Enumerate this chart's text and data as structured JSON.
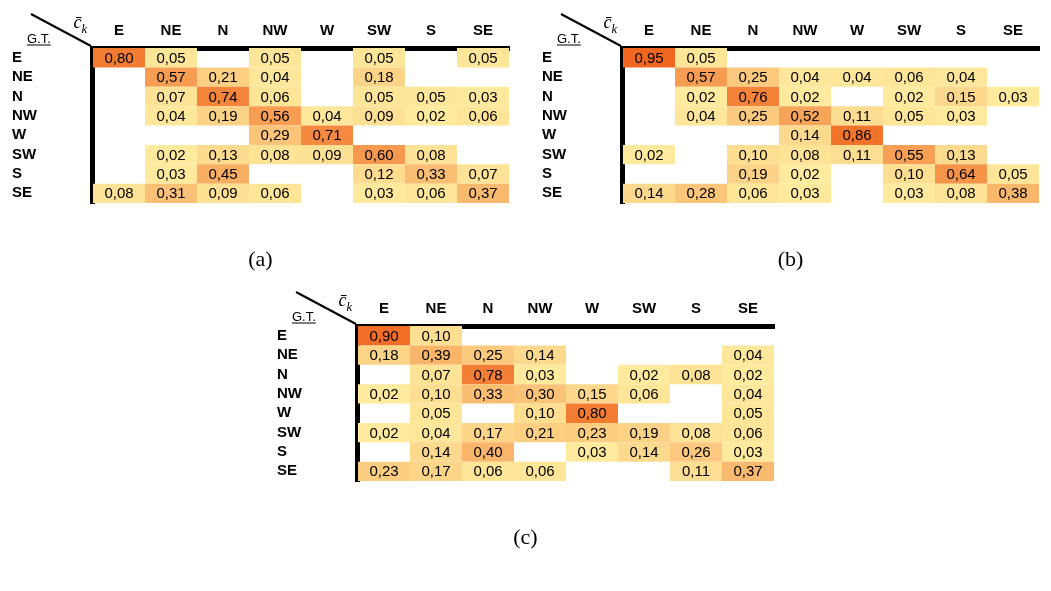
{
  "chart_data": [
    {
      "type": "heatmap",
      "title": "(a)",
      "xlabel": "c̄$_{k}$",
      "ylabel": "G.T.",
      "categories": [
        "E",
        "NE",
        "N",
        "NW",
        "W",
        "SW",
        "S",
        "SE"
      ],
      "y_categories": [
        "E",
        "NE",
        "N",
        "NW",
        "W",
        "SW",
        "S",
        "SE"
      ],
      "cells": [
        [
          0.8,
          0.05,
          null,
          0.05,
          null,
          0.05,
          null,
          0.05
        ],
        [
          null,
          0.57,
          0.21,
          0.04,
          null,
          0.18,
          null,
          null
        ],
        [
          null,
          0.07,
          0.74,
          0.06,
          null,
          0.05,
          0.05,
          0.03
        ],
        [
          null,
          0.04,
          0.19,
          0.56,
          0.04,
          0.09,
          0.02,
          0.06
        ],
        [
          null,
          null,
          null,
          0.29,
          0.71,
          null,
          null,
          null
        ],
        [
          null,
          0.02,
          0.13,
          0.08,
          0.09,
          0.6,
          0.08,
          null
        ],
        [
          null,
          0.03,
          0.45,
          null,
          null,
          0.12,
          0.33,
          0.07
        ],
        [
          0.08,
          0.31,
          0.09,
          0.06,
          null,
          0.03,
          0.06,
          0.37
        ]
      ],
      "cell_labels": [
        [
          "0,80",
          "0,05",
          null,
          "0,05",
          null,
          "0,05",
          null,
          "0,05"
        ],
        [
          null,
          "0,57",
          "0,21",
          "0,04",
          null,
          "0,18",
          null,
          null
        ],
        [
          null,
          "0,07",
          "0,74",
          "0,06",
          null,
          "0,05",
          "0,05",
          "0,03"
        ],
        [
          null,
          "0,04",
          "0,19",
          "0,56",
          "0,04",
          "0,09",
          "0,02",
          "0,06"
        ],
        [
          null,
          null,
          null,
          "0,29",
          "0,71",
          null,
          null,
          null
        ],
        [
          null,
          "0,02",
          "0,13",
          "0,08",
          "0,09",
          "0,60",
          "0,08",
          null
        ],
        [
          null,
          "0,03",
          "0,45",
          null,
          null,
          "0,12",
          "0,33",
          "0,07"
        ],
        [
          "0,08",
          "0,31",
          "0,09",
          "0,06",
          null,
          "0,03",
          "0,06",
          "0,37"
        ]
      ]
    },
    {
      "type": "heatmap",
      "title": "(b)",
      "xlabel": "c̄$_{k}$",
      "ylabel": "G.T.",
      "categories": [
        "E",
        "NE",
        "N",
        "NW",
        "W",
        "SW",
        "S",
        "SE"
      ],
      "y_categories": [
        "E",
        "NE",
        "N",
        "NW",
        "W",
        "SW",
        "S",
        "SE"
      ],
      "cells": [
        [
          0.95,
          0.05,
          null,
          null,
          null,
          null,
          null,
          null
        ],
        [
          null,
          0.57,
          0.25,
          0.04,
          0.04,
          0.06,
          0.04,
          null
        ],
        [
          null,
          0.02,
          0.76,
          0.02,
          null,
          0.02,
          0.15,
          0.03
        ],
        [
          null,
          0.04,
          0.25,
          0.52,
          0.11,
          0.05,
          0.03,
          null
        ],
        [
          null,
          null,
          null,
          0.14,
          0.86,
          null,
          null,
          null
        ],
        [
          0.02,
          null,
          0.1,
          0.08,
          0.11,
          0.55,
          0.13,
          null
        ],
        [
          null,
          null,
          0.19,
          0.02,
          null,
          0.1,
          0.64,
          0.05
        ],
        [
          0.14,
          0.28,
          0.06,
          0.03,
          null,
          0.03,
          0.08,
          0.38
        ]
      ],
      "cell_labels": [
        [
          "0,95",
          "0,05",
          null,
          null,
          null,
          null,
          null,
          null
        ],
        [
          null,
          "0,57",
          "0,25",
          "0,04",
          "0,04",
          "0,06",
          "0,04",
          null
        ],
        [
          null,
          "0,02",
          "0,76",
          "0,02",
          null,
          "0,02",
          "0,15",
          "0,03"
        ],
        [
          null,
          "0,04",
          "0,25",
          "0,52",
          "0,11",
          "0,05",
          "0,03",
          null
        ],
        [
          null,
          null,
          null,
          "0,14",
          "0,86",
          null,
          null,
          null
        ],
        [
          "0,02",
          null,
          "0,10",
          "0,08",
          "0,11",
          "0,55",
          "0,13",
          null
        ],
        [
          null,
          null,
          "0,19",
          "0,02",
          null,
          "0,10",
          "0,64",
          "0,05"
        ],
        [
          "0,14",
          "0,28",
          "0,06",
          "0,03",
          null,
          "0,03",
          "0,08",
          "0,38"
        ]
      ]
    },
    {
      "type": "heatmap",
      "title": "(c)",
      "xlabel": "c̄$_{k}$",
      "ylabel": "G.T.",
      "categories": [
        "E",
        "NE",
        "N",
        "NW",
        "W",
        "SW",
        "S",
        "SE"
      ],
      "y_categories": [
        "E",
        "NE",
        "N",
        "NW",
        "W",
        "SW",
        "S",
        "SE"
      ],
      "cells": [
        [
          0.9,
          0.1,
          null,
          null,
          null,
          null,
          null,
          null
        ],
        [
          0.18,
          0.39,
          0.25,
          0.14,
          null,
          null,
          null,
          0.04
        ],
        [
          null,
          0.07,
          0.78,
          0.03,
          null,
          0.02,
          0.08,
          0.02
        ],
        [
          0.02,
          0.1,
          0.33,
          0.3,
          0.15,
          0.06,
          null,
          0.04
        ],
        [
          null,
          0.05,
          null,
          0.1,
          0.8,
          null,
          null,
          0.05
        ],
        [
          0.02,
          0.04,
          0.17,
          0.21,
          0.23,
          0.19,
          0.08,
          0.06
        ],
        [
          null,
          0.14,
          0.4,
          null,
          0.03,
          0.14,
          0.26,
          0.03
        ],
        [
          0.23,
          0.17,
          0.06,
          0.06,
          null,
          null,
          0.11,
          0.37
        ]
      ],
      "cell_labels": [
        [
          "0,90",
          "0,10",
          null,
          null,
          null,
          null,
          null,
          null
        ],
        [
          "0,18",
          "0,39",
          "0,25",
          "0,14",
          null,
          null,
          null,
          "0,04"
        ],
        [
          null,
          "0,07",
          "0,78",
          "0,03",
          null,
          "0,02",
          "0,08",
          "0,02"
        ],
        [
          "0,02",
          "0,10",
          "0,33",
          "0,30",
          "0,15",
          "0,06",
          null,
          "0,04"
        ],
        [
          null,
          "0,05",
          null,
          "0,10",
          "0,80",
          null,
          null,
          "0,05"
        ],
        [
          "0,02",
          "0,04",
          "0,17",
          "0,21",
          "0,23",
          "0,19",
          "0,08",
          "0,06"
        ],
        [
          null,
          "0,14",
          "0,40",
          null,
          "0,03",
          "0,14",
          "0,26",
          "0,03"
        ],
        [
          "0,23",
          "0,17",
          "0,06",
          "0,06",
          null,
          null,
          "0,11",
          "0,37"
        ]
      ]
    }
  ]
}
